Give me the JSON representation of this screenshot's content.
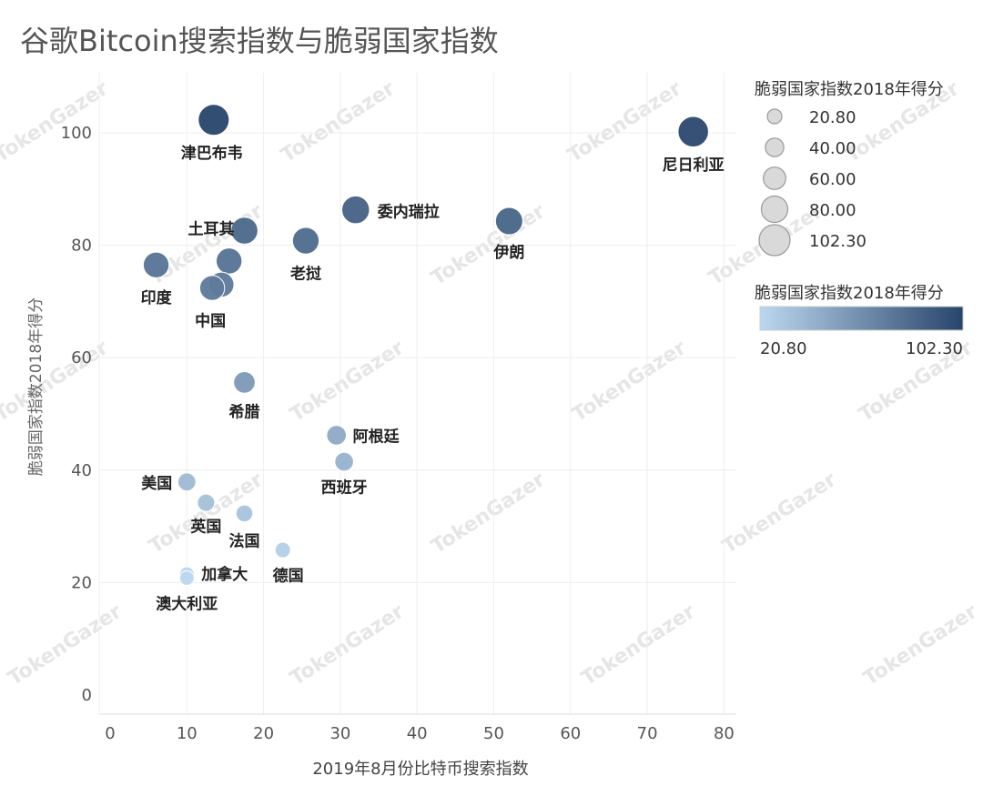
{
  "title": "谷歌Bitcoin搜索指数与脆弱国家指数",
  "watermark": "TokenGazer",
  "colors": {
    "low": "#bcd8ef",
    "high": "#27446b",
    "grid": "#eeeeee",
    "text": "#555555"
  },
  "legend": {
    "size_title": "脆弱国家指数2018年得分",
    "size_labels": [
      "20.80",
      "40.00",
      "60.00",
      "80.00",
      "102.30"
    ],
    "size_values": [
      20.8,
      40,
      60,
      80,
      102.3
    ],
    "color_title": "脆弱国家指数2018年得分",
    "color_min_label": "20.80",
    "color_max_label": "102.30"
  },
  "chart_data": {
    "type": "scatter",
    "title": "谷歌Bitcoin搜索指数与脆弱国家指数",
    "xlabel": "2019年8月份比特币搜索指数",
    "ylabel": "脆弱国家指数2018年得分",
    "xlim": [
      0,
      82
    ],
    "ylim": [
      -3,
      110
    ],
    "xticks": [
      0,
      10,
      20,
      30,
      40,
      50,
      60,
      70,
      80
    ],
    "yticks": [
      0,
      20,
      40,
      60,
      80,
      100
    ],
    "size_color_range": [
      20.8,
      102.3
    ],
    "points": [
      {
        "label": "津巴布韦",
        "x": 13.5,
        "y": 102.3
      },
      {
        "label": "尼日利亚",
        "x": 76,
        "y": 100.2
      },
      {
        "label": "委内瑞拉",
        "x": 32,
        "y": 86.3
      },
      {
        "label": "伊朗",
        "x": 52,
        "y": 84.3
      },
      {
        "label": "土耳其",
        "x": 17.5,
        "y": 82.6
      },
      {
        "label": "老挝",
        "x": 25.5,
        "y": 80.8
      },
      {
        "label": "",
        "x": 15.5,
        "y": 77.2
      },
      {
        "label": "印度",
        "x": 6,
        "y": 76.5
      },
      {
        "label": "",
        "x": 14.5,
        "y": 73.0
      },
      {
        "label": "中国",
        "x": 13.3,
        "y": 72.4
      },
      {
        "label": "希腊",
        "x": 17.5,
        "y": 55.6
      },
      {
        "label": "阿根廷",
        "x": 29.5,
        "y": 46.2
      },
      {
        "label": "西班牙",
        "x": 30.5,
        "y": 41.5
      },
      {
        "label": "美国",
        "x": 10,
        "y": 37.9
      },
      {
        "label": "英国",
        "x": 12.5,
        "y": 34.2
      },
      {
        "label": "法国",
        "x": 17.5,
        "y": 32.3
      },
      {
        "label": "德国",
        "x": 22.5,
        "y": 25.8
      },
      {
        "label": "加拿大",
        "x": 10,
        "y": 21.5
      },
      {
        "label": "澳大利亚",
        "x": 10,
        "y": 20.8
      }
    ]
  }
}
